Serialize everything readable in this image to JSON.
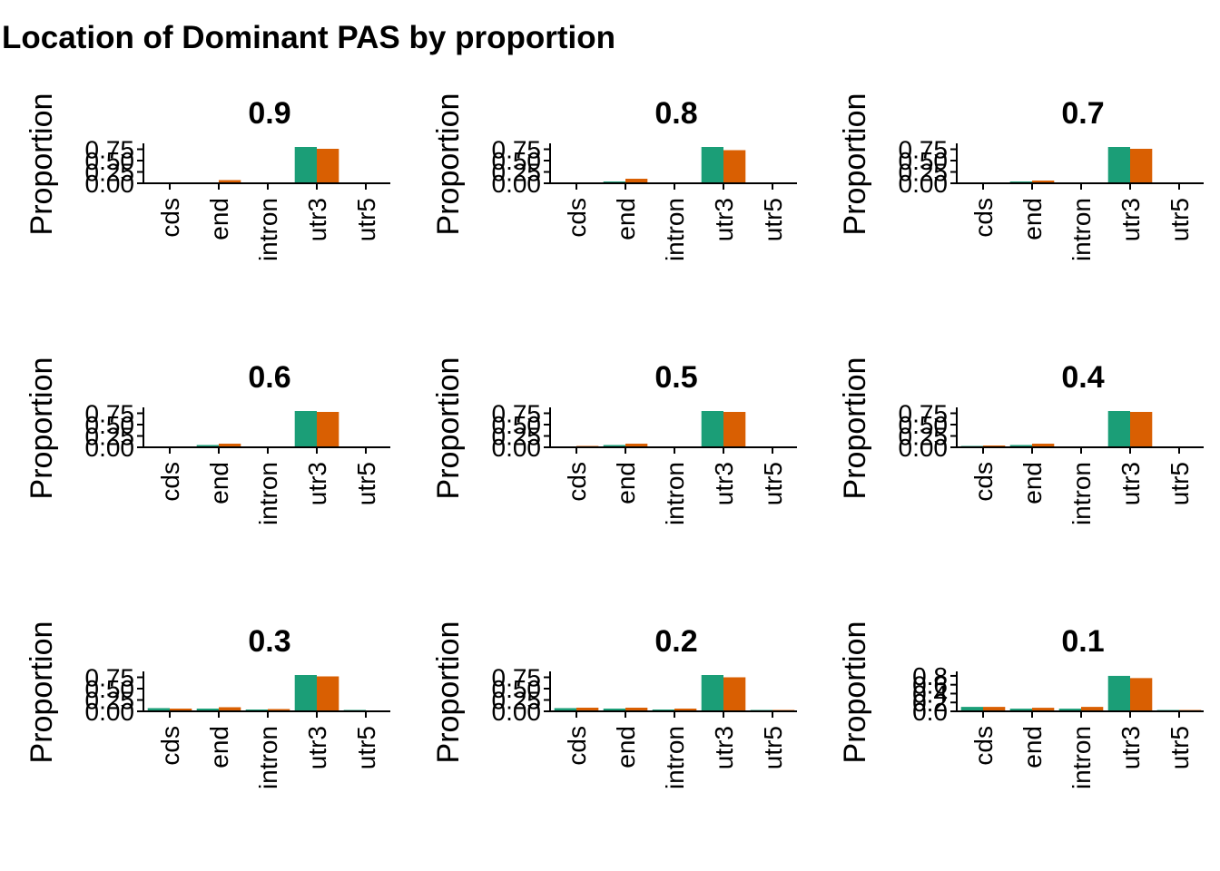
{
  "title": "Location of Dominant PAS by proportion",
  "colors": {
    "series1": "#1B9E77",
    "series2": "#D95F02"
  },
  "chart_data": [
    {
      "type": "bar",
      "title": "0.9",
      "ylabel": "Proportion",
      "xlabel": "",
      "categories": [
        "cds",
        "end",
        "intron",
        "utr3",
        "utr5"
      ],
      "yticks": [
        "0.00",
        "0.25",
        "0.50",
        "0.75"
      ],
      "ylim": [
        0,
        0.84
      ],
      "series": [
        {
          "values": [
            0.0,
            0.02,
            0.0,
            0.8,
            0.0
          ]
        },
        {
          "values": [
            0.02,
            0.07,
            0.0,
            0.76,
            0.0
          ]
        }
      ]
    },
    {
      "type": "bar",
      "title": "0.8",
      "ylabel": "Proportion",
      "xlabel": "",
      "categories": [
        "cds",
        "end",
        "intron",
        "utr3",
        "utr5"
      ],
      "yticks": [
        "0.00",
        "0.25",
        "0.50",
        "0.75"
      ],
      "ylim": [
        0,
        0.84
      ],
      "series": [
        {
          "values": [
            0.0,
            0.04,
            0.0,
            0.8,
            0.0
          ]
        },
        {
          "values": [
            0.02,
            0.1,
            0.0,
            0.73,
            0.0
          ]
        }
      ]
    },
    {
      "type": "bar",
      "title": "0.7",
      "ylabel": "Proportion",
      "xlabel": "",
      "categories": [
        "cds",
        "end",
        "intron",
        "utr3",
        "utr5"
      ],
      "yticks": [
        "0.00",
        "0.25",
        "0.50",
        "0.75"
      ],
      "ylim": [
        0,
        0.84
      ],
      "series": [
        {
          "values": [
            0.0,
            0.04,
            0.0,
            0.8,
            0.0
          ]
        },
        {
          "values": [
            0.0,
            0.06,
            0.0,
            0.76,
            0.0
          ]
        }
      ]
    },
    {
      "type": "bar",
      "title": "0.6",
      "ylabel": "Proportion",
      "xlabel": "",
      "categories": [
        "cds",
        "end",
        "intron",
        "utr3",
        "utr5"
      ],
      "yticks": [
        "0.00",
        "0.25",
        "0.50",
        "0.75"
      ],
      "ylim": [
        0,
        0.84
      ],
      "series": [
        {
          "values": [
            0.01,
            0.05,
            0.01,
            0.8,
            0.0
          ]
        },
        {
          "values": [
            0.02,
            0.08,
            0.02,
            0.78,
            0.0
          ]
        }
      ]
    },
    {
      "type": "bar",
      "title": "0.5",
      "ylabel": "Proportion",
      "xlabel": "",
      "categories": [
        "cds",
        "end",
        "intron",
        "utr3",
        "utr5"
      ],
      "yticks": [
        "0.00",
        "0.25",
        "0.50",
        "0.75"
      ],
      "ylim": [
        0,
        0.84
      ],
      "series": [
        {
          "values": [
            0.02,
            0.05,
            0.01,
            0.8,
            0.0
          ]
        },
        {
          "values": [
            0.03,
            0.08,
            0.02,
            0.78,
            0.0
          ]
        }
      ]
    },
    {
      "type": "bar",
      "title": "0.4",
      "ylabel": "Proportion",
      "xlabel": "",
      "categories": [
        "cds",
        "end",
        "intron",
        "utr3",
        "utr5"
      ],
      "yticks": [
        "0.00",
        "0.25",
        "0.50",
        "0.75"
      ],
      "ylim": [
        0,
        0.84
      ],
      "series": [
        {
          "values": [
            0.03,
            0.05,
            0.01,
            0.8,
            0.0
          ]
        },
        {
          "values": [
            0.04,
            0.08,
            0.02,
            0.78,
            0.0
          ]
        }
      ]
    },
    {
      "type": "bar",
      "title": "0.3",
      "ylabel": "Proportion",
      "xlabel": "",
      "categories": [
        "cds",
        "end",
        "intron",
        "utr3",
        "utr5"
      ],
      "yticks": [
        "0.00",
        "0.25",
        "0.50",
        "0.75"
      ],
      "ylim": [
        0,
        0.84
      ],
      "series": [
        {
          "values": [
            0.07,
            0.06,
            0.04,
            0.8,
            0.03
          ]
        },
        {
          "values": [
            0.06,
            0.09,
            0.05,
            0.77,
            0.02
          ]
        }
      ]
    },
    {
      "type": "bar",
      "title": "0.2",
      "ylabel": "Proportion",
      "xlabel": "",
      "categories": [
        "cds",
        "end",
        "intron",
        "utr3",
        "utr5"
      ],
      "yticks": [
        "0.00",
        "0.25",
        "0.50",
        "0.75"
      ],
      "ylim": [
        0,
        0.84
      ],
      "series": [
        {
          "values": [
            0.07,
            0.06,
            0.04,
            0.8,
            0.03
          ]
        },
        {
          "values": [
            0.08,
            0.08,
            0.06,
            0.75,
            0.03
          ]
        }
      ]
    },
    {
      "type": "bar",
      "title": "0.1",
      "ylabel": "Proportion",
      "xlabel": "",
      "categories": [
        "cds",
        "end",
        "intron",
        "utr3",
        "utr5"
      ],
      "yticks": [
        "0.0",
        "0.2",
        "0.4",
        "0.6",
        "0.8"
      ],
      "ylim": [
        0,
        0.86
      ],
      "series": [
        {
          "values": [
            0.1,
            0.06,
            0.06,
            0.8,
            0.03
          ]
        },
        {
          "values": [
            0.1,
            0.08,
            0.1,
            0.75,
            0.03
          ]
        }
      ]
    }
  ]
}
